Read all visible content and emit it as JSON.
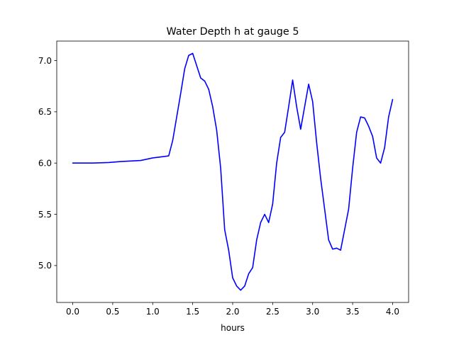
{
  "chart_data": {
    "type": "line",
    "title": "Water Depth h at gauge 5",
    "xlabel": "hours",
    "ylabel": "",
    "xlim": [
      -0.2,
      4.2
    ],
    "ylim": [
      4.64,
      7.19
    ],
    "xticks": [
      0.0,
      0.5,
      1.0,
      1.5,
      2.0,
      2.5,
      3.0,
      3.5,
      4.0
    ],
    "xtick_labels": [
      "0.0",
      "0.5",
      "1.0",
      "1.5",
      "2.0",
      "2.5",
      "3.0",
      "3.5",
      "4.0"
    ],
    "yticks": [
      5.0,
      5.5,
      6.0,
      6.5,
      7.0
    ],
    "ytick_labels": [
      "5.0",
      "5.5",
      "6.0",
      "6.5",
      "7.0"
    ],
    "grid": false,
    "colors": {
      "line": "#0000ff",
      "axes": "#000000",
      "background": "#ffffff"
    },
    "series": [
      {
        "x": [
          0.0,
          0.25,
          0.45,
          0.6,
          0.85,
          1.0,
          1.1,
          1.2,
          1.25,
          1.3,
          1.35,
          1.4,
          1.45,
          1.5,
          1.55,
          1.6,
          1.65,
          1.7,
          1.75,
          1.8,
          1.85,
          1.9,
          1.95,
          2.0,
          2.05,
          2.1,
          2.15,
          2.2,
          2.25,
          2.3,
          2.35,
          2.4,
          2.45,
          2.5,
          2.55,
          2.6,
          2.65,
          2.7,
          2.75,
          2.8,
          2.85,
          2.9,
          2.95,
          3.0,
          3.05,
          3.1,
          3.15,
          3.2,
          3.25,
          3.3,
          3.35,
          3.4,
          3.45,
          3.5,
          3.55,
          3.6,
          3.65,
          3.7,
          3.75,
          3.8,
          3.85,
          3.9,
          3.95,
          4.0
        ],
        "y": [
          6.0,
          6.0,
          6.005,
          6.015,
          6.025,
          6.05,
          6.06,
          6.07,
          6.22,
          6.45,
          6.68,
          6.92,
          7.05,
          7.07,
          6.95,
          6.83,
          6.8,
          6.72,
          6.55,
          6.32,
          5.95,
          5.35,
          5.15,
          4.88,
          4.8,
          4.76,
          4.8,
          4.92,
          4.98,
          5.25,
          5.42,
          5.5,
          5.42,
          5.6,
          6.0,
          6.25,
          6.3,
          6.55,
          6.81,
          6.55,
          6.33,
          6.55,
          6.77,
          6.6,
          6.2,
          5.85,
          5.55,
          5.25,
          5.16,
          5.17,
          5.15,
          5.35,
          5.55,
          5.95,
          6.3,
          6.45,
          6.44,
          6.36,
          6.26,
          6.05,
          6.0,
          6.15,
          6.45,
          6.62
        ]
      }
    ]
  }
}
